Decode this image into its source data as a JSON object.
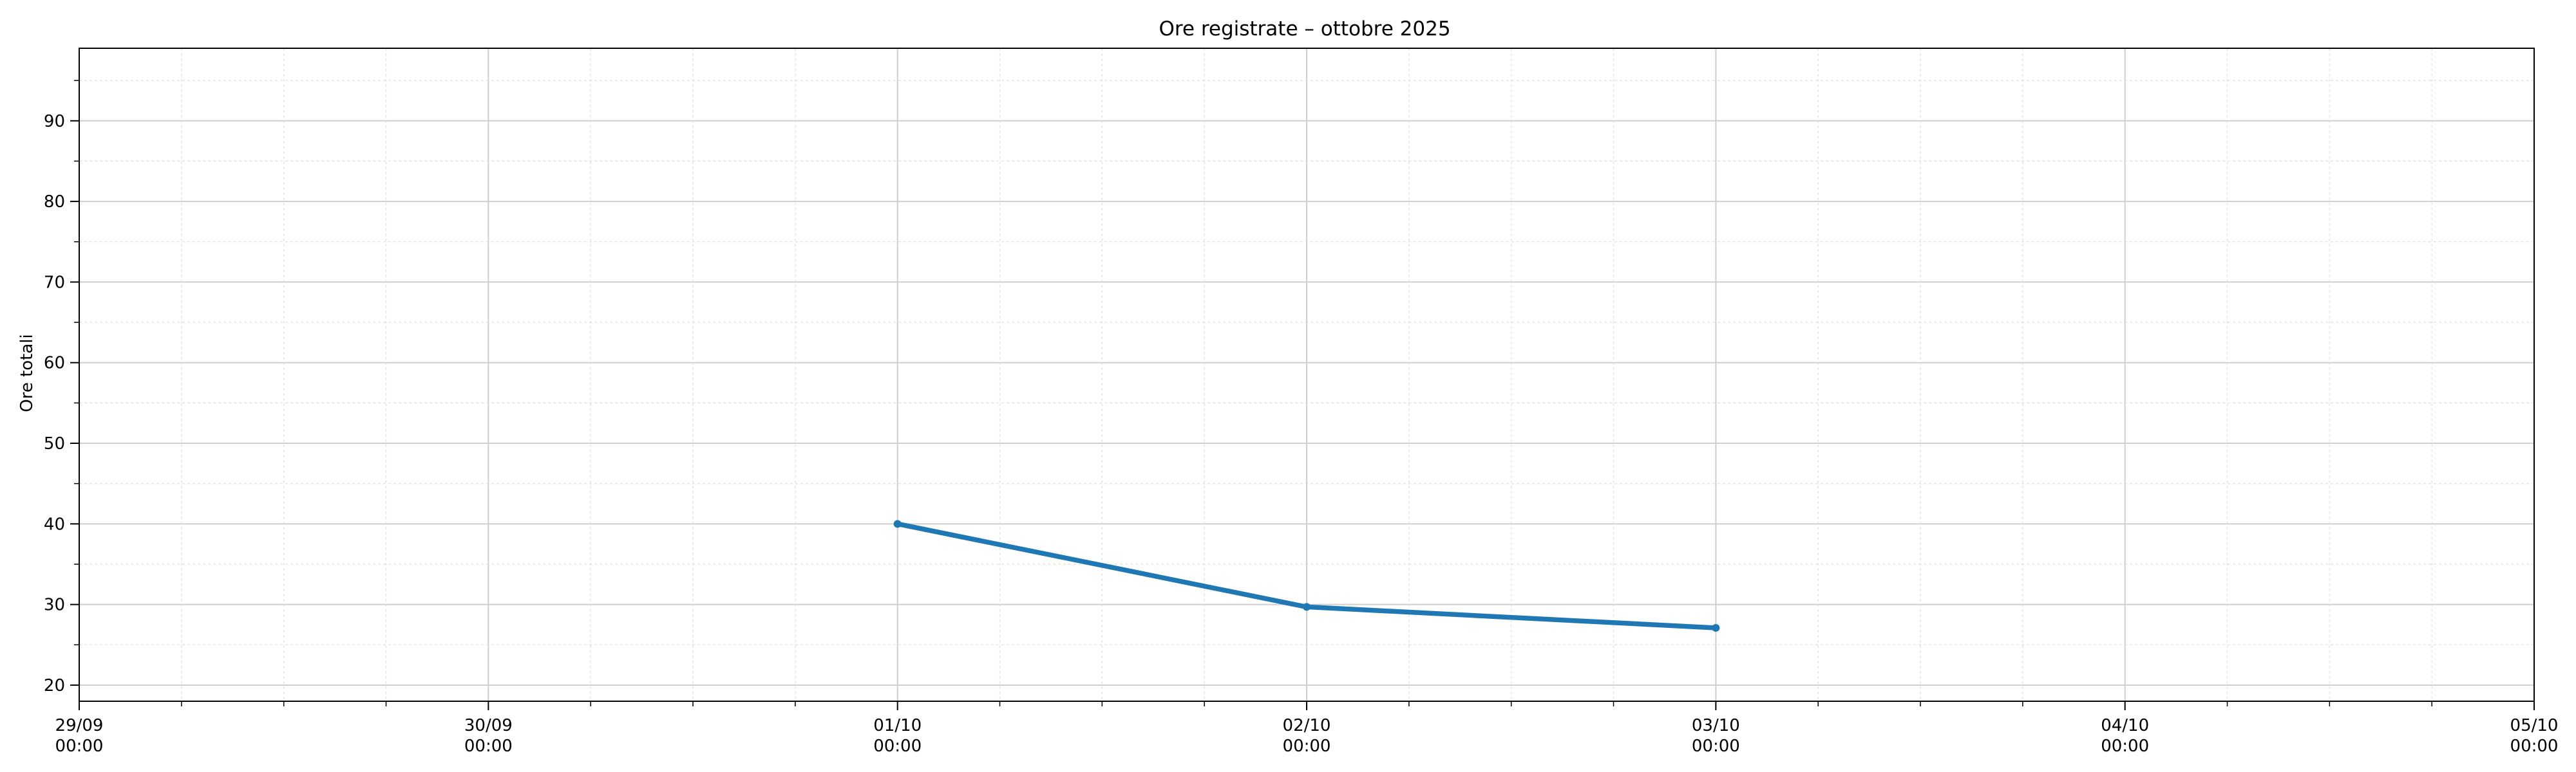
{
  "chart_data": {
    "type": "line",
    "title": "Ore registrate – ottobre 2025",
    "xlabel": "",
    "ylabel": "Ore totali",
    "xlim": [
      "2025-09-29T00:00",
      "2025-10-05T00:00"
    ],
    "ylim": [
      18,
      99
    ],
    "x_ticks": [
      {
        "x": "2025-09-29T00:00",
        "label_date": "29/09",
        "label_time": "00:00"
      },
      {
        "x": "2025-09-30T00:00",
        "label_date": "30/09",
        "label_time": "00:00"
      },
      {
        "x": "2025-10-01T00:00",
        "label_date": "01/10",
        "label_time": "00:00"
      },
      {
        "x": "2025-10-02T00:00",
        "label_date": "02/10",
        "label_time": "00:00"
      },
      {
        "x": "2025-10-03T00:00",
        "label_date": "03/10",
        "label_time": "00:00"
      },
      {
        "x": "2025-10-04T00:00",
        "label_date": "04/10",
        "label_time": "00:00"
      },
      {
        "x": "2025-10-05T00:00",
        "label_date": "05/10",
        "label_time": "00:00"
      }
    ],
    "y_ticks": [
      20,
      30,
      40,
      50,
      60,
      70,
      80,
      90
    ],
    "grid": true,
    "minor_grid": true,
    "series": [
      {
        "color": "#1f77b4",
        "points": [
          {
            "x": "2025-10-01T00:00",
            "y": 40.0
          },
          {
            "x": "2025-10-02T00:00",
            "y": 29.7
          },
          {
            "x": "2025-10-03T00:00",
            "y": 27.1
          }
        ]
      }
    ]
  }
}
